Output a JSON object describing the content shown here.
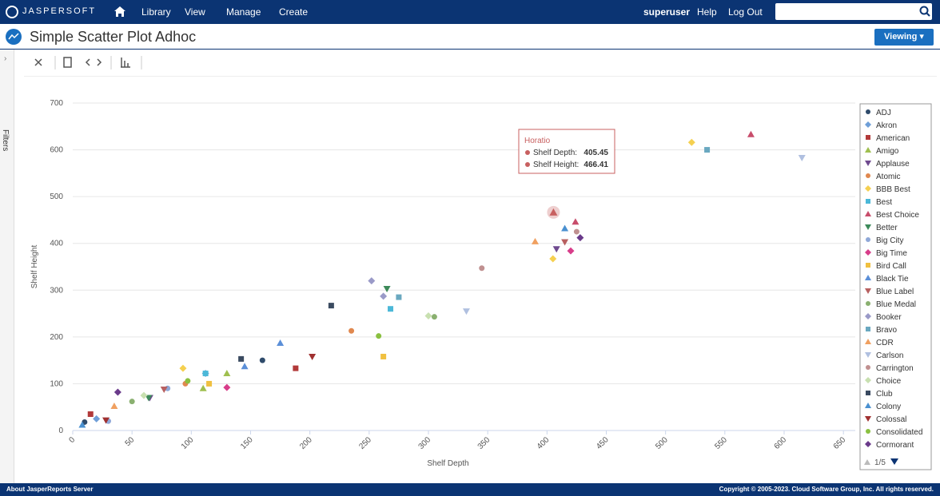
{
  "nav": {
    "logo": "JASPERSOFT",
    "items": [
      "Library",
      "View",
      "Manage",
      "Create"
    ],
    "user": "superuser",
    "help": "Help",
    "logout": "Log Out"
  },
  "header": {
    "title": "Simple Scatter Plot Adhoc",
    "mode": "Viewing"
  },
  "sidebar": {
    "label": "Filters"
  },
  "footer": {
    "about": "About JasperReports Server",
    "copyright": "Copyright © 2005-2023. Cloud Software Group, Inc. All rights reserved."
  },
  "chart_data": {
    "type": "scatter",
    "x_label": "Shelf Depth",
    "y_label": "Shelf Height",
    "xlim": [
      0,
      660
    ],
    "xticks": [
      0,
      50,
      100,
      150,
      200,
      250,
      300,
      350,
      400,
      450,
      500,
      550,
      600,
      650
    ],
    "ylim": [
      0,
      700
    ],
    "yticks": [
      0,
      100,
      200,
      300,
      400,
      500,
      600,
      700
    ],
    "grid": true,
    "legend": "right",
    "legend_pager": "1/5",
    "tooltip": {
      "title": "Horatio",
      "color": "#c86060",
      "rows": [
        {
          "label": "Shelf Depth:",
          "value": 405.45
        },
        {
          "label": "Shelf Height:",
          "value": 466.41
        }
      ]
    },
    "series": [
      {
        "name": "ADJ",
        "color": "#2f4b6b",
        "x": [
          10,
          160
        ],
        "values": [
          18,
          150
        ]
      },
      {
        "name": "Akron",
        "color": "#6f9fd8",
        "x": [
          20,
          112
        ],
        "values": [
          25,
          122
        ]
      },
      {
        "name": "American",
        "color": "#b23a3a",
        "x": [
          188,
          15
        ],
        "values": [
          133,
          35
        ]
      },
      {
        "name": "Amigo",
        "color": "#9fbf4f",
        "x": [
          110,
          130
        ],
        "values": [
          90,
          122
        ]
      },
      {
        "name": "Applause",
        "color": "#6f4a8f",
        "x": [
          408,
          65
        ],
        "values": [
          388,
          70
        ]
      },
      {
        "name": "Atomic",
        "color": "#e0884f",
        "x": [
          235,
          95
        ],
        "values": [
          213,
          100
        ]
      },
      {
        "name": "BBB Best",
        "color": "#f5d050",
        "x": [
          522,
          405,
          93
        ],
        "values": [
          616,
          367,
          133
        ]
      },
      {
        "name": "Best",
        "color": "#4bb8d8",
        "x": [
          268,
          112
        ],
        "values": [
          260,
          122
        ]
      },
      {
        "name": "Best Choice",
        "color": "#c84d6b",
        "x": [
          572,
          424
        ],
        "values": [
          633,
          446
        ]
      },
      {
        "name": "Better",
        "color": "#3d8a5a",
        "x": [
          265,
          64
        ],
        "values": [
          303,
          70
        ]
      },
      {
        "name": "Big City",
        "color": "#8fa8d8",
        "x": [
          30,
          80
        ],
        "values": [
          20,
          90
        ]
      },
      {
        "name": "Big Time",
        "color": "#d83d8a",
        "x": [
          420,
          130
        ],
        "values": [
          384,
          92
        ]
      },
      {
        "name": "Bird Call",
        "color": "#f0c040",
        "x": [
          262,
          115
        ],
        "values": [
          158,
          100
        ]
      },
      {
        "name": "Black Tie",
        "color": "#5b8fd8",
        "x": [
          145,
          175
        ],
        "values": [
          137,
          187
        ]
      },
      {
        "name": "Blue Label",
        "color": "#b86060",
        "x": [
          415,
          77
        ],
        "values": [
          403,
          88
        ]
      },
      {
        "name": "Blue Medal",
        "color": "#8ab070",
        "x": [
          305,
          50
        ],
        "values": [
          243,
          62
        ]
      },
      {
        "name": "Booker",
        "color": "#9a9ac8",
        "x": [
          252,
          262
        ],
        "values": [
          320,
          287
        ]
      },
      {
        "name": "Bravo",
        "color": "#6aa8c0",
        "x": [
          535,
          275
        ],
        "values": [
          600,
          285
        ]
      },
      {
        "name": "CDR",
        "color": "#f0a060",
        "x": [
          390,
          35
        ],
        "values": [
          404,
          52
        ]
      },
      {
        "name": "Carlson",
        "color": "#b0c0e0",
        "x": [
          615,
          332
        ],
        "values": [
          583,
          255
        ]
      },
      {
        "name": "Carrington",
        "color": "#c09090",
        "x": [
          425,
          345
        ],
        "values": [
          425,
          347
        ]
      },
      {
        "name": "Choice",
        "color": "#c8e0b0",
        "x": [
          300,
          60
        ],
        "values": [
          245,
          75
        ]
      },
      {
        "name": "Club",
        "color": "#3a4a60",
        "x": [
          218,
          142
        ],
        "values": [
          267,
          153
        ]
      },
      {
        "name": "Colony",
        "color": "#4a90d0",
        "x": [
          8,
          415
        ],
        "values": [
          12,
          432
        ]
      },
      {
        "name": "Colossal",
        "color": "#a03030",
        "x": [
          202,
          28
        ],
        "values": [
          158,
          22
        ]
      },
      {
        "name": "Consolidated",
        "color": "#8ac040",
        "x": [
          258,
          97
        ],
        "values": [
          202,
          106
        ]
      },
      {
        "name": "Cormorant",
        "color": "#6a3a8a",
        "x": [
          428,
          38
        ],
        "values": [
          412,
          82
        ]
      }
    ]
  }
}
